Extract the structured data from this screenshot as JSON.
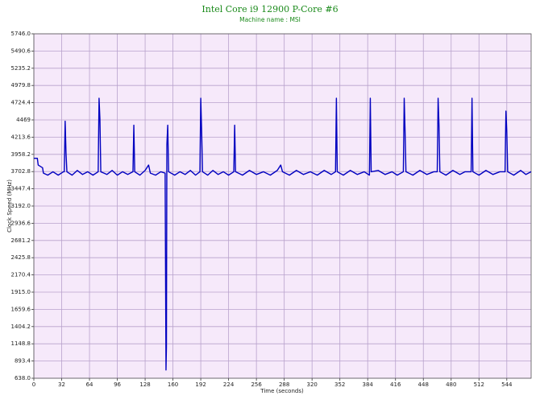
{
  "chart_data": {
    "type": "line",
    "title": "Intel Core i9 12900 P-Core #6",
    "subtitle": "Machine name : MSI",
    "x_label": "Time (seconds)",
    "y_label": "Clock Speed (MHz)",
    "xlim": [
      0,
      572
    ],
    "ylim": [
      638,
      5746
    ],
    "xticks": [
      0,
      32,
      64,
      96,
      128,
      160,
      192,
      224,
      256,
      288,
      320,
      352,
      384,
      416,
      448,
      480,
      512,
      544
    ],
    "yticks": [
      {
        "value": 638,
        "label": "638.0"
      },
      893.4,
      1148.8,
      1404.2,
      1659.6,
      {
        "value": 1915,
        "label": "1915.0"
      },
      2170.4,
      2425.8,
      2681.2,
      2936.6,
      {
        "value": 3192,
        "label": "3192.0"
      },
      3447.4,
      3702.8,
      3958.2,
      4213.6,
      4469,
      4724.4,
      4979.8,
      5235.2,
      5490.6,
      {
        "value": 5746,
        "label": "5746.0"
      }
    ],
    "grid": true,
    "series": [
      {
        "name": "P-Core #6",
        "color": "#0000c0",
        "x": [
          0,
          4,
          5,
          10,
          11,
          16,
          22,
          28,
          34,
          35,
          36,
          37,
          38,
          44,
          50,
          56,
          62,
          68,
          74,
          75,
          76,
          77,
          84,
          90,
          96,
          102,
          108,
          114,
          115,
          116,
          122,
          128,
          132,
          134,
          140,
          146,
          151,
          152,
          152.5,
          153,
          154,
          155,
          162,
          168,
          174,
          180,
          186,
          191,
          192,
          193,
          194,
          200,
          206,
          212,
          218,
          224,
          230,
          231,
          232,
          240,
          248,
          256,
          264,
          272,
          280,
          284,
          286,
          294,
          302,
          310,
          318,
          326,
          334,
          342,
          347,
          348,
          349,
          356,
          364,
          372,
          380,
          386,
          387,
          388,
          396,
          404,
          412,
          418,
          425,
          426,
          427,
          428,
          436,
          444,
          452,
          460,
          464,
          465,
          466,
          467,
          474,
          482,
          490,
          496,
          503,
          504,
          505,
          512,
          520,
          528,
          536,
          542,
          543,
          544,
          545,
          552,
          560,
          566,
          572
        ],
        "values": [
          3900,
          3900,
          3800,
          3760,
          3680,
          3650,
          3700,
          3650,
          3700,
          3700,
          4450,
          3980,
          3700,
          3650,
          3720,
          3660,
          3700,
          3650,
          3700,
          4790,
          4480,
          3700,
          3660,
          3720,
          3650,
          3700,
          3660,
          3700,
          4390,
          3700,
          3650,
          3720,
          3800,
          3680,
          3650,
          3700,
          3680,
          760,
          1100,
          4100,
          4390,
          3700,
          3650,
          3700,
          3660,
          3720,
          3650,
          3700,
          4790,
          4300,
          3700,
          3650,
          3720,
          3660,
          3700,
          3650,
          3700,
          4390,
          3700,
          3650,
          3720,
          3660,
          3700,
          3650,
          3720,
          3800,
          3700,
          3650,
          3720,
          3660,
          3700,
          3650,
          3720,
          3660,
          3700,
          4790,
          3700,
          3650,
          3720,
          3660,
          3700,
          3650,
          4790,
          3700,
          3720,
          3660,
          3700,
          3650,
          3700,
          4790,
          4300,
          3700,
          3650,
          3720,
          3660,
          3700,
          3700,
          4790,
          4400,
          3700,
          3650,
          3720,
          3660,
          3700,
          3700,
          4790,
          3700,
          3650,
          3720,
          3660,
          3700,
          3700,
          4600,
          4300,
          3700,
          3650,
          3720,
          3660,
          3700
        ]
      }
    ]
  }
}
